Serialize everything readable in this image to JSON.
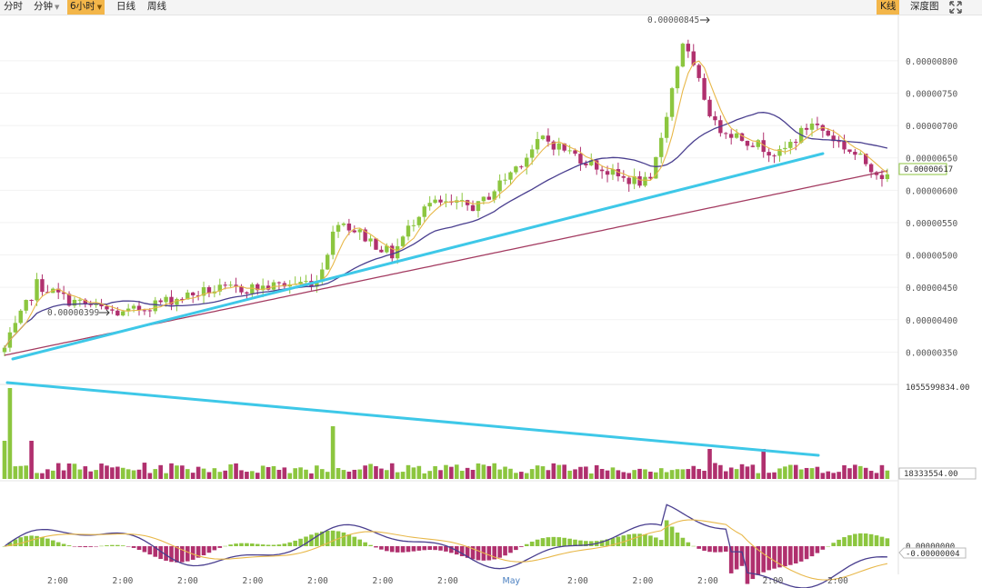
{
  "toolbar": {
    "tabs": [
      {
        "label": "分时",
        "active": false,
        "dropdown": false
      },
      {
        "label": "分钟",
        "active": false,
        "dropdown": true
      },
      {
        "label": "6小时",
        "active": true,
        "dropdown": true
      },
      {
        "label": "日线",
        "active": false,
        "dropdown": false
      },
      {
        "label": "周线",
        "active": false,
        "dropdown": false
      }
    ],
    "right": {
      "kline_label": "K线",
      "depth_label": "深度图",
      "fullscreen_icon": "expand-arrows-icon"
    }
  },
  "colors": {
    "up": "#8cc63f",
    "down": "#b0306e",
    "ma_short": "#e8b84a",
    "ma_mid": "#4a3f8f",
    "ma_long": "#a33a60",
    "trendline": "#3ec8e8",
    "grid": "#f2f2f2"
  },
  "chart_data": [
    {
      "type": "candlestick",
      "name": "price",
      "ylim": [
        3e-06,
        8.7e-06
      ],
      "yticks": [
        {
          "label": "0.00000350",
          "value": 3.5e-06
        },
        {
          "label": "0.00000400",
          "value": 4e-06
        },
        {
          "label": "0.00000450",
          "value": 4.5e-06
        },
        {
          "label": "0.00000500",
          "value": 5e-06
        },
        {
          "label": "0.00000550",
          "value": 5.5e-06
        },
        {
          "label": "0.00000600",
          "value": 6e-06
        },
        {
          "label": "0.00000650",
          "value": 6.5e-06
        },
        {
          "label": "0.00000700",
          "value": 7e-06
        },
        {
          "label": "0.00000750",
          "value": 7.5e-06
        },
        {
          "label": "0.00000800",
          "value": 8e-06
        }
      ],
      "current_price": {
        "label": "0.00000617",
        "value": 6.17e-06
      },
      "annotations": [
        {
          "text": "0.00000845",
          "value": 8.45e-06,
          "kind": "high"
        },
        {
          "text": "0.00000399",
          "value": 3.99e-06,
          "kind": "low"
        }
      ],
      "moving_averages": [
        "short",
        "mid",
        "long"
      ],
      "trendline": {
        "from": 3.4e-06,
        "to": 6.4e-06,
        "direction": "up"
      },
      "grid": true
    },
    {
      "type": "bar",
      "name": "volume",
      "max_label": "1055599834.00",
      "current_label": "18333554.00",
      "trendline": {
        "direction": "down"
      }
    },
    {
      "type": "macd",
      "name": "macd",
      "zero_label": "0.00000000",
      "current_label": "-0.00000004"
    }
  ],
  "x_axis": {
    "ticks": [
      "2:00",
      "2:00",
      "2:00",
      "2:00",
      "2:00",
      "2:00",
      "2:00",
      "May",
      "2:00",
      "2:00",
      "2:00",
      "2:00",
      "2:00"
    ]
  }
}
